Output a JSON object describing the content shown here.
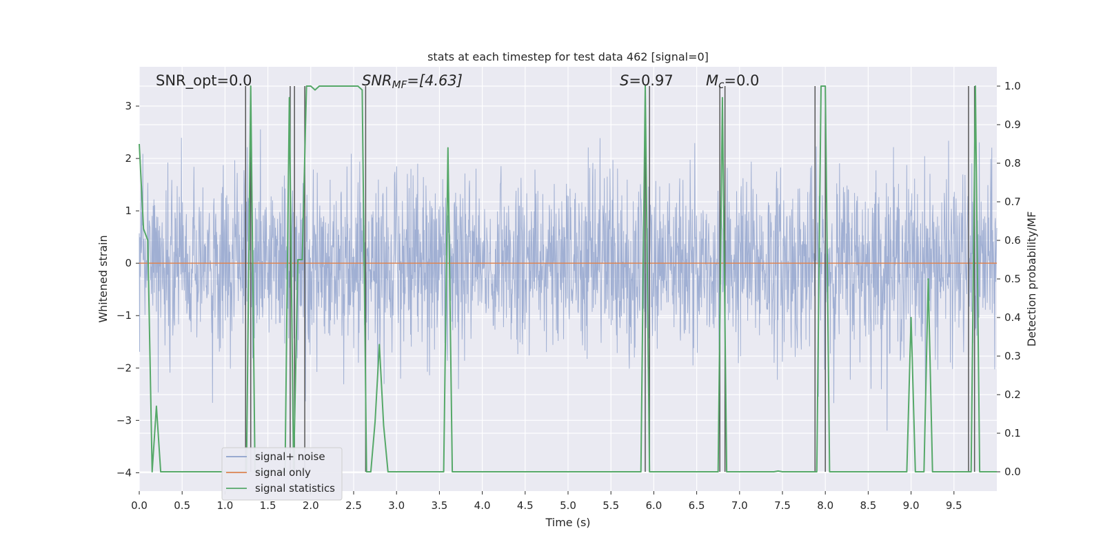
{
  "chart_data": {
    "type": "line",
    "title": "stats at each timestep for test data 462 [signal=0]",
    "xlabel": "Time (s)",
    "ylabel_left": "Whitened strain",
    "ylabel_right": "Detection probability/MF",
    "xlim": [
      0,
      10
    ],
    "ylim_left": [
      -4.35,
      3.75
    ],
    "ylim_right": [
      -0.05,
      1.05
    ],
    "x_ticks": [
      "0.0",
      "0.5",
      "1.0",
      "1.5",
      "2.0",
      "2.5",
      "3.0",
      "3.5",
      "4.0",
      "4.5",
      "5.0",
      "5.5",
      "6.0",
      "6.5",
      "7.0",
      "7.5",
      "8.0",
      "8.5",
      "9.0",
      "9.5"
    ],
    "y_ticks_left": [
      "3",
      "2",
      "1",
      "0",
      "−1",
      "−2",
      "−3",
      "−4"
    ],
    "y_ticks_right": [
      "1.0",
      "0.9",
      "0.8",
      "0.7",
      "0.6",
      "0.5",
      "0.4",
      "0.3",
      "0.2",
      "0.1",
      "0.0"
    ],
    "grid": true,
    "legend_placement": "lower-left",
    "annotations": {
      "snr_opt": "SNR_opt=0.0",
      "snr_mf_var": "SNR",
      "snr_mf_sub": "MF",
      "snr_mf_val": "=[4.63]",
      "s_var": "S",
      "s_val": "=0.97",
      "mc_var": "M",
      "mc_sub": "c",
      "mc_val": "=0.0"
    },
    "series": [
      {
        "name": "signal+ noise",
        "color": "#8da0cb",
        "description": "whitened noise, time range 0-10 s, amplitude roughly -4 to 3.3"
      },
      {
        "name": "signal only",
        "color": "#dd8452",
        "x": [
          0,
          10
        ],
        "y": [
          0,
          0
        ]
      },
      {
        "name": "signal statistics",
        "color": "#55a868",
        "axis": "right",
        "x": [
          0.0,
          0.05,
          0.1,
          0.15,
          0.2,
          0.25,
          0.3,
          0.35,
          1.2,
          1.25,
          1.3,
          1.35,
          1.7,
          1.75,
          1.8,
          1.85,
          1.9,
          1.95,
          2.0,
          2.05,
          2.1,
          2.15,
          2.2,
          2.55,
          2.6,
          2.65,
          2.7,
          2.75,
          2.8,
          2.85,
          2.9,
          2.95,
          3.55,
          3.6,
          3.65,
          5.85,
          5.9,
          5.95,
          6.7,
          6.75,
          6.8,
          6.85,
          7.4,
          7.45,
          7.5,
          7.9,
          7.95,
          8.0,
          8.05,
          8.9,
          8.95,
          9.0,
          9.05,
          9.1,
          9.15,
          9.2,
          9.25,
          9.65,
          9.7,
          9.75,
          9.8,
          10.0
        ],
        "y": [
          0.85,
          0.63,
          0.6,
          0.0,
          0.17,
          0.0,
          0.0,
          0.0,
          0.0,
          0.0,
          1.0,
          0.0,
          0.0,
          0.97,
          0.0,
          0.55,
          0.55,
          1.0,
          1.0,
          0.99,
          1.0,
          1.0,
          1.0,
          1.0,
          0.99,
          0.0,
          0.0,
          0.13,
          0.33,
          0.12,
          0.0,
          0.0,
          0.0,
          0.84,
          0.0,
          0.0,
          1.0,
          0.0,
          0.0,
          0.0,
          0.97,
          0.0,
          0.0,
          0.002,
          0.0,
          0.0,
          1.0,
          1.0,
          0.0,
          0.0,
          0.0,
          0.4,
          0.0,
          0.0,
          0.0,
          0.5,
          0.0,
          0.0,
          0.0,
          1.0,
          0.0,
          0.0
        ]
      }
    ],
    "trigger_lines_x": [
      1.24,
      1.3,
      1.76,
      1.81,
      1.93,
      2.64,
      5.9,
      5.95,
      6.77,
      6.83,
      7.88,
      8.0,
      9.67,
      9.74
    ]
  }
}
